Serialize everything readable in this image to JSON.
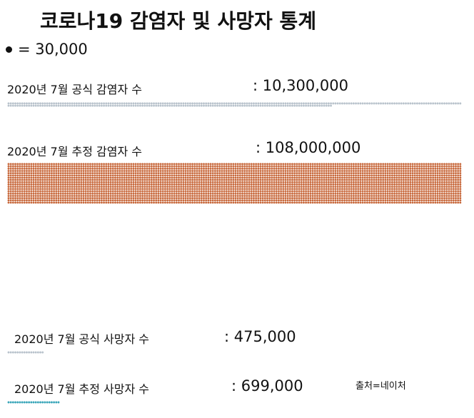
{
  "title": "코로나19 감염자 및 사망자 통계",
  "unit_legend": "= 30,000",
  "source": "출처=네이처",
  "colors": {
    "official_cases": "#b9c3cc",
    "estimated_cases": "#c86a3e",
    "official_deaths": "#b9c3cc",
    "estimated_deaths": "#3aa6b9",
    "legend_dot": "#111111"
  },
  "chart_data": {
    "type": "dot",
    "unit_value": 30000,
    "unit_label": "= 30,000",
    "rows": [
      {
        "label": "2020년 7월 공식 감염자 수",
        "value_text": ": 10,300,000",
        "value": 10300000,
        "color": "#b9c3cc"
      },
      {
        "label": "2020년 7월 추정 감염자 수",
        "value_text": ": 108,000,000",
        "value": 108000000,
        "color": "#c86a3e"
      },
      {
        "label": "2020년 7월 공식 사망자 수",
        "value_text": ": 475,000",
        "value": 475000,
        "color": "#b9c3cc"
      },
      {
        "label": "2020년 7월 추정 사망자 수",
        "value_text": ": 699,000",
        "value": 699000,
        "color": "#3aa6b9"
      }
    ]
  }
}
